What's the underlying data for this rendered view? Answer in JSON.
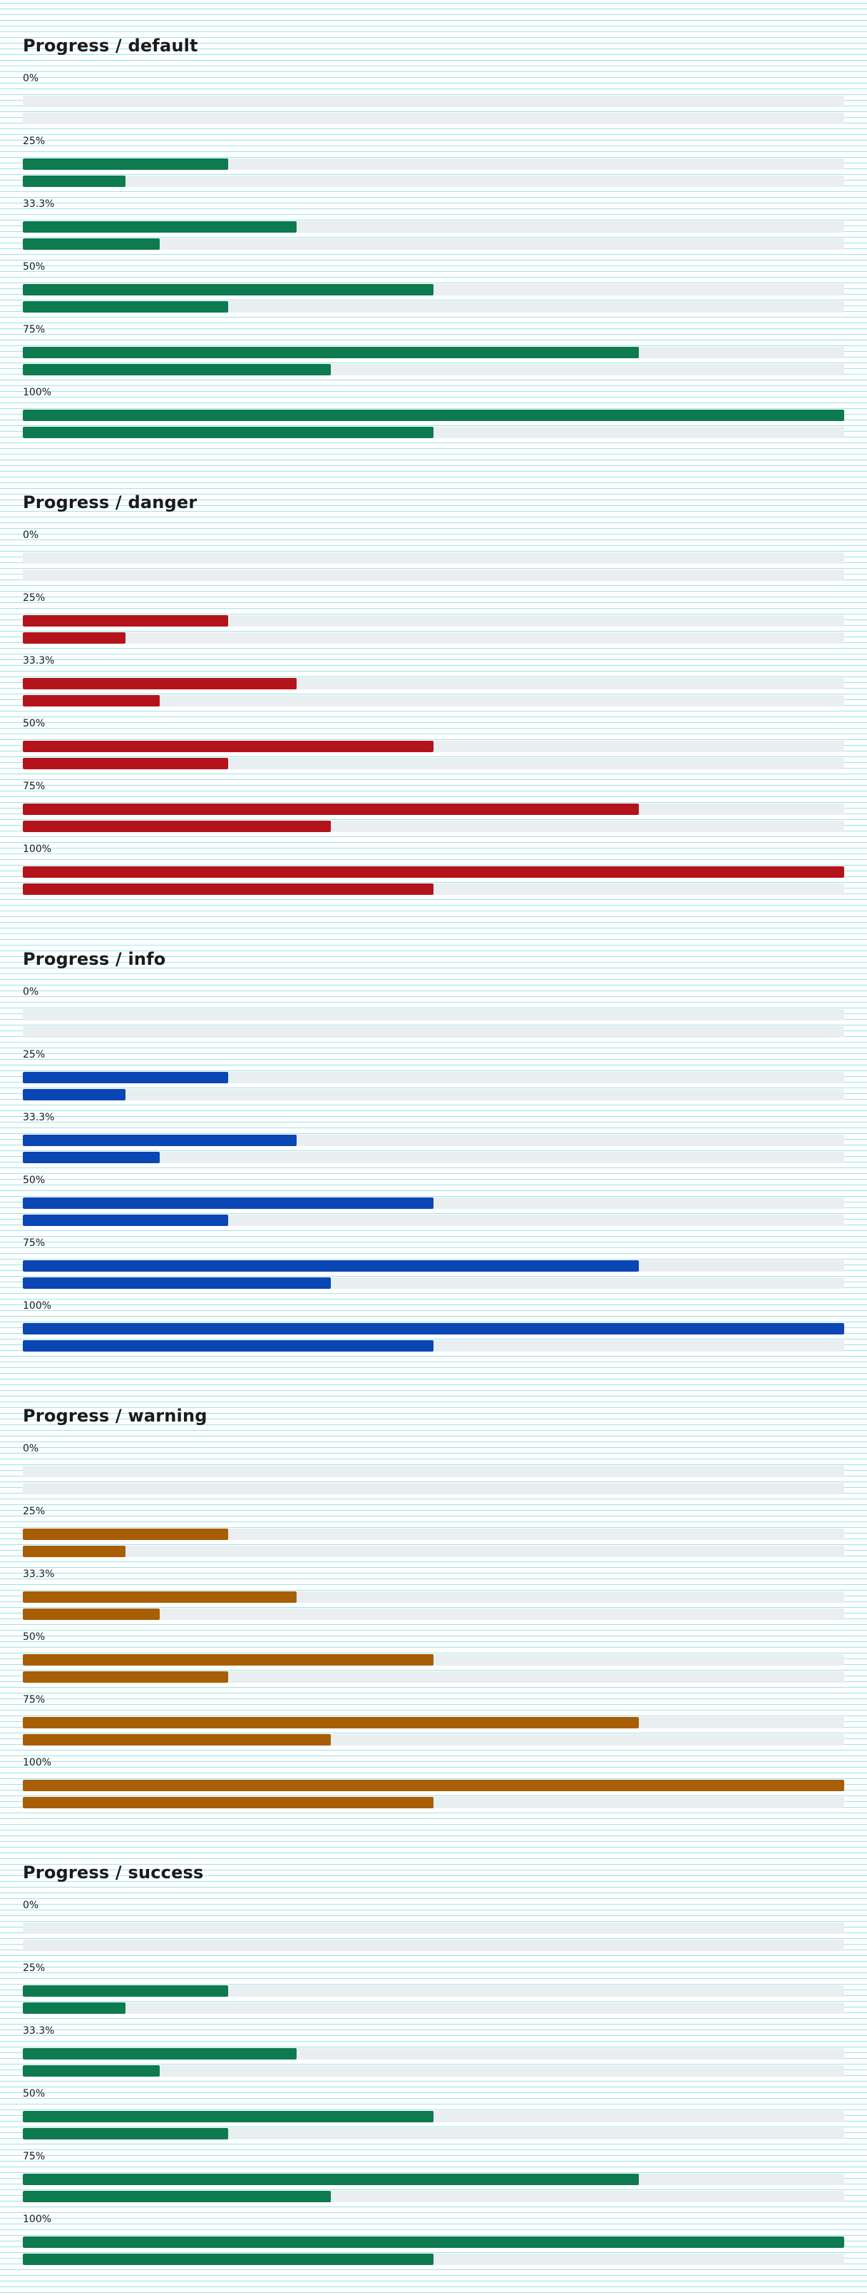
{
  "sections": [
    {
      "title": "Progress / default",
      "color": "#0e7a4f",
      "rows": [
        {
          "label": "0%",
          "primary": 0,
          "secondary": 0
        },
        {
          "label": "25%",
          "primary": 25,
          "secondary": 12.5
        },
        {
          "label": "33.3%",
          "primary": 33.3,
          "secondary": 16.65
        },
        {
          "label": "50%",
          "primary": 50,
          "secondary": 25
        },
        {
          "label": "75%",
          "primary": 75,
          "secondary": 37.5
        },
        {
          "label": "100%",
          "primary": 100,
          "secondary": 50
        }
      ]
    },
    {
      "title": "Progress / danger",
      "color": "#b3141c",
      "rows": [
        {
          "label": "0%",
          "primary": 0,
          "secondary": 0
        },
        {
          "label": "25%",
          "primary": 25,
          "secondary": 12.5
        },
        {
          "label": "33.3%",
          "primary": 33.3,
          "secondary": 16.65
        },
        {
          "label": "50%",
          "primary": 50,
          "secondary": 25
        },
        {
          "label": "75%",
          "primary": 75,
          "secondary": 37.5
        },
        {
          "label": "100%",
          "primary": 100,
          "secondary": 50
        }
      ]
    },
    {
      "title": "Progress / info",
      "color": "#0a46b4",
      "rows": [
        {
          "label": "0%",
          "primary": 0,
          "secondary": 0
        },
        {
          "label": "25%",
          "primary": 25,
          "secondary": 12.5
        },
        {
          "label": "33.3%",
          "primary": 33.3,
          "secondary": 16.65
        },
        {
          "label": "50%",
          "primary": 50,
          "secondary": 25
        },
        {
          "label": "75%",
          "primary": 75,
          "secondary": 37.5
        },
        {
          "label": "100%",
          "primary": 100,
          "secondary": 50
        }
      ]
    },
    {
      "title": "Progress / warning",
      "color": "#a85e05",
      "rows": [
        {
          "label": "0%",
          "primary": 0,
          "secondary": 0
        },
        {
          "label": "25%",
          "primary": 25,
          "secondary": 12.5
        },
        {
          "label": "33.3%",
          "primary": 33.3,
          "secondary": 16.65
        },
        {
          "label": "50%",
          "primary": 50,
          "secondary": 25
        },
        {
          "label": "75%",
          "primary": 75,
          "secondary": 37.5
        },
        {
          "label": "100%",
          "primary": 100,
          "secondary": 50
        }
      ]
    },
    {
      "title": "Progress / success",
      "color": "#0e7a4f",
      "rows": [
        {
          "label": "0%",
          "primary": 0,
          "secondary": 0
        },
        {
          "label": "25%",
          "primary": 25,
          "secondary": 12.5
        },
        {
          "label": "33.3%",
          "primary": 33.3,
          "secondary": 16.65
        },
        {
          "label": "50%",
          "primary": 50,
          "secondary": 25
        },
        {
          "label": "75%",
          "primary": 75,
          "secondary": 37.5
        },
        {
          "label": "100%",
          "primary": 100,
          "secondary": 50
        }
      ]
    }
  ]
}
